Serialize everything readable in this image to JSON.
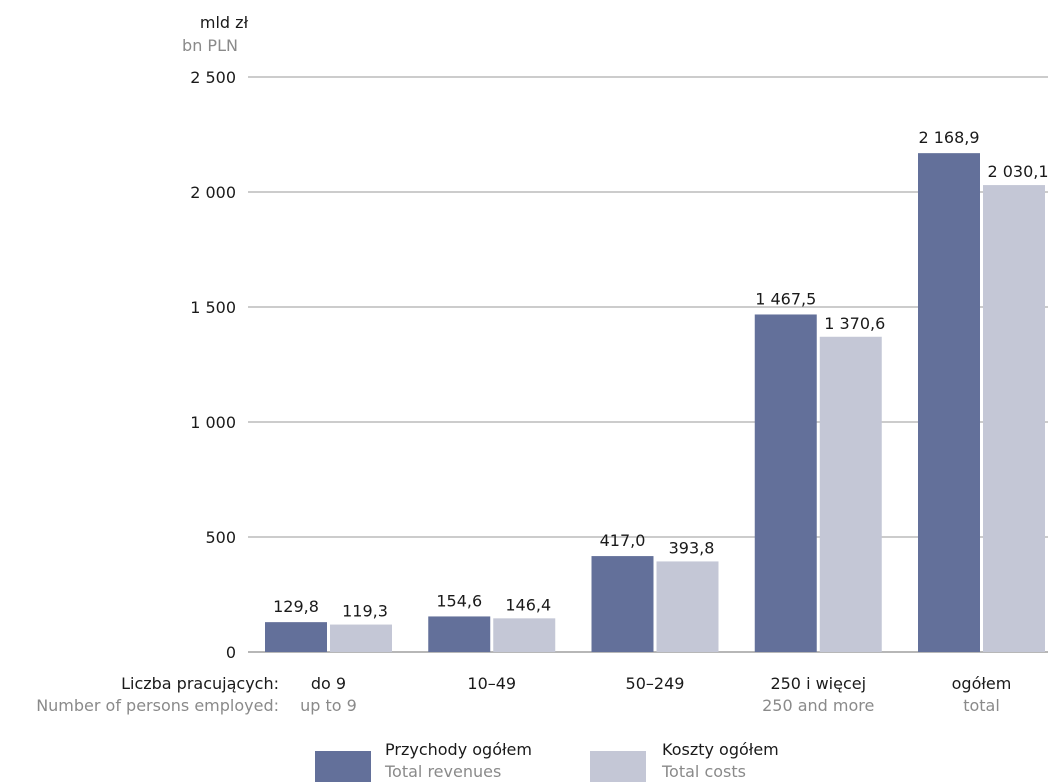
{
  "chart_data": {
    "type": "bar",
    "ylabel": "mld zł",
    "ylabel_en": "bn PLN",
    "ylim": [
      0,
      2500
    ],
    "yticks": [
      0,
      500,
      1000,
      1500,
      2000,
      2500
    ],
    "ytick_labels": [
      "0",
      "500",
      "1 000",
      "1 500",
      "2 000",
      "2 500"
    ],
    "grid": true,
    "xlabel": "Liczba pracujących:",
    "xlabel_en": "Number of persons employed:",
    "categories": [
      "do 9",
      "10–49",
      "50–249",
      "250 i więcej",
      "ogółem"
    ],
    "categories_en": [
      "up to 9",
      "",
      "",
      "250 and more",
      "total"
    ],
    "series": [
      {
        "name": "Przychody ogółem",
        "name_en": "Total revenues",
        "color": "#63709a",
        "values": [
          129.8,
          154.6,
          417.0,
          1467.5,
          2168.9
        ],
        "labels": [
          "129,8",
          "154,6",
          "417,0",
          "1 467,5",
          "2 168,9"
        ]
      },
      {
        "name": "Koszty ogółem",
        "name_en": "Total costs",
        "color": "#c4c7d6",
        "values": [
          119.3,
          146.4,
          393.8,
          1370.6,
          2030.1
        ],
        "labels": [
          "119,3",
          "146,4",
          "393,8",
          "1 370,6",
          "2 030,1"
        ]
      }
    ],
    "legend": "bottom"
  }
}
